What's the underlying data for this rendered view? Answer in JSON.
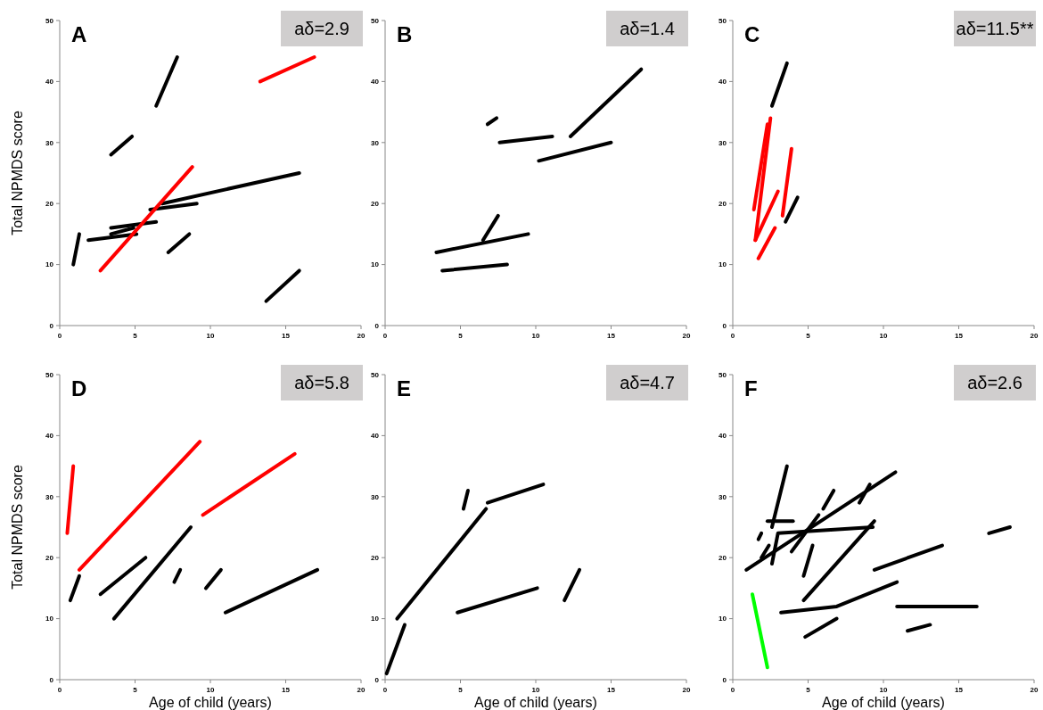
{
  "chart_data": [
    {
      "type": "line",
      "ylabel": "Total NPMDS score",
      "xlim": [
        0,
        20
      ],
      "xticks": [
        0,
        5,
        10,
        15,
        20
      ],
      "ylim": [
        0,
        50
      ],
      "yticks": [
        0,
        10,
        20,
        30,
        40,
        50
      ],
      "annotations": [
        "A",
        "aδ=2.9"
      ],
      "series": [
        {
          "color": "#000000",
          "x": [
            0.9,
            1.3
          ],
          "values": [
            10,
            15
          ]
        },
        {
          "color": "#000000",
          "x": [
            1.9,
            5.1
          ],
          "values": [
            14,
            15
          ]
        },
        {
          "color": "#000000",
          "x": [
            3.4,
            4.9
          ],
          "values": [
            15,
            16
          ]
        },
        {
          "color": "#000000",
          "x": [
            3.4,
            6.4
          ],
          "values": [
            16,
            17
          ]
        },
        {
          "color": "#000000",
          "x": [
            6.0,
            9.1
          ],
          "values": [
            19,
            20
          ]
        },
        {
          "color": "#000000",
          "x": [
            6.8,
            15.9
          ],
          "values": [
            20,
            25
          ]
        },
        {
          "color": "#000000",
          "x": [
            3.4,
            4.8
          ],
          "values": [
            28,
            31
          ]
        },
        {
          "color": "#000000",
          "x": [
            6.4,
            7.8
          ],
          "values": [
            36,
            44
          ]
        },
        {
          "color": "#000000",
          "x": [
            7.2,
            8.6
          ],
          "values": [
            12,
            15
          ]
        },
        {
          "color": "#000000",
          "x": [
            13.7,
            15.9
          ],
          "values": [
            4,
            9
          ]
        },
        {
          "color": "#ff0000",
          "x": [
            2.7,
            8.8
          ],
          "values": [
            9,
            26
          ]
        },
        {
          "color": "#ff0000",
          "x": [
            13.3,
            16.9
          ],
          "values": [
            40,
            44
          ]
        }
      ]
    },
    {
      "type": "line",
      "xlim": [
        0,
        20
      ],
      "xticks": [
        0,
        5,
        10,
        15,
        20
      ],
      "ylim": [
        0,
        50
      ],
      "yticks": [
        0,
        10,
        20,
        30,
        40,
        50
      ],
      "annotations": [
        "B",
        "aδ=1.4"
      ],
      "series": [
        {
          "color": "#000000",
          "x": [
            6.8,
            7.4
          ],
          "values": [
            33,
            34
          ]
        },
        {
          "color": "#000000",
          "x": [
            7.6,
            11.1
          ],
          "values": [
            30,
            31
          ]
        },
        {
          "color": "#000000",
          "x": [
            12.3,
            17.0
          ],
          "values": [
            31,
            42
          ]
        },
        {
          "color": "#000000",
          "x": [
            10.2,
            15.0
          ],
          "values": [
            27,
            30
          ]
        },
        {
          "color": "#000000",
          "x": [
            6.5,
            7.5
          ],
          "values": [
            14,
            18
          ]
        },
        {
          "color": "#000000",
          "x": [
            3.4,
            9.5
          ],
          "values": [
            12,
            15
          ]
        },
        {
          "color": "#000000",
          "x": [
            3.8,
            8.1
          ],
          "values": [
            9,
            10
          ]
        }
      ]
    },
    {
      "type": "line",
      "xlim": [
        0,
        20
      ],
      "xticks": [
        0,
        5,
        10,
        15,
        20
      ],
      "ylim": [
        0,
        50
      ],
      "yticks": [
        0,
        10,
        20,
        30,
        40,
        50
      ],
      "annotations": [
        "C",
        "aδ=11.5**"
      ],
      "series": [
        {
          "color": "#000000",
          "x": [
            2.6,
            3.6
          ],
          "values": [
            36,
            43
          ]
        },
        {
          "color": "#000000",
          "x": [
            3.5,
            4.3
          ],
          "values": [
            17,
            21
          ]
        },
        {
          "color": "#ff0000",
          "x": [
            1.4,
            2.3
          ],
          "values": [
            19,
            33
          ]
        },
        {
          "color": "#ff0000",
          "x": [
            1.5,
            2.5
          ],
          "values": [
            14,
            34
          ]
        },
        {
          "color": "#ff0000",
          "x": [
            1.5,
            3.0
          ],
          "values": [
            14,
            22
          ]
        },
        {
          "color": "#ff0000",
          "x": [
            1.7,
            2.8
          ],
          "values": [
            11,
            16
          ]
        },
        {
          "color": "#ff0000",
          "x": [
            3.3,
            3.9
          ],
          "values": [
            18,
            29
          ]
        }
      ]
    },
    {
      "type": "line",
      "xlabel": "Age of child (years)",
      "ylabel": "Total NPMDS score",
      "xlim": [
        0,
        20
      ],
      "xticks": [
        0,
        5,
        10,
        15,
        20
      ],
      "ylim": [
        0,
        50
      ],
      "yticks": [
        0,
        10,
        20,
        30,
        40,
        50
      ],
      "annotations": [
        "D",
        "aδ=5.8"
      ],
      "series": [
        {
          "color": "#ff0000",
          "x": [
            0.5,
            0.9
          ],
          "values": [
            24,
            35
          ]
        },
        {
          "color": "#ff0000",
          "x": [
            1.3,
            9.3
          ],
          "values": [
            18,
            39
          ]
        },
        {
          "color": "#ff0000",
          "x": [
            9.5,
            15.6
          ],
          "values": [
            27,
            37
          ]
        },
        {
          "color": "#000000",
          "x": [
            0.7,
            1.3
          ],
          "values": [
            13,
            17
          ]
        },
        {
          "color": "#000000",
          "x": [
            2.7,
            5.7
          ],
          "values": [
            14,
            20
          ]
        },
        {
          "color": "#000000",
          "x": [
            3.6,
            8.7
          ],
          "values": [
            10,
            25
          ]
        },
        {
          "color": "#000000",
          "x": [
            7.6,
            8.0
          ],
          "values": [
            16,
            18
          ]
        },
        {
          "color": "#000000",
          "x": [
            9.7,
            10.7
          ],
          "values": [
            15,
            18
          ]
        },
        {
          "color": "#000000",
          "x": [
            11.0,
            17.1
          ],
          "values": [
            11,
            18
          ]
        }
      ]
    },
    {
      "type": "line",
      "xlabel": "Age of child (years)",
      "xlim": [
        0,
        20
      ],
      "xticks": [
        0,
        5,
        10,
        15,
        20
      ],
      "ylim": [
        0,
        50
      ],
      "yticks": [
        0,
        10,
        20,
        30,
        40,
        50
      ],
      "annotations": [
        "E",
        "aδ=4.7"
      ],
      "series": [
        {
          "color": "#000000",
          "x": [
            0.1,
            1.3
          ],
          "values": [
            1,
            9
          ]
        },
        {
          "color": "#000000",
          "x": [
            0.8,
            6.7
          ],
          "values": [
            10,
            28
          ]
        },
        {
          "color": "#000000",
          "x": [
            5.2,
            5.5
          ],
          "values": [
            28,
            31
          ]
        },
        {
          "color": "#000000",
          "x": [
            6.8,
            10.5
          ],
          "values": [
            29,
            32
          ]
        },
        {
          "color": "#000000",
          "x": [
            4.8,
            10.1
          ],
          "values": [
            11,
            15
          ]
        },
        {
          "color": "#000000",
          "x": [
            11.9,
            12.9
          ],
          "values": [
            13,
            18
          ]
        }
      ]
    },
    {
      "type": "line",
      "xlabel": "Age of child (years)",
      "xlim": [
        0,
        20
      ],
      "xticks": [
        0,
        5,
        10,
        15,
        20
      ],
      "ylim": [
        0,
        50
      ],
      "yticks": [
        0,
        10,
        20,
        30,
        40,
        50
      ],
      "annotations": [
        "F",
        "aδ=2.6"
      ],
      "series": [
        {
          "color": "#00ff00",
          "x": [
            1.3,
            2.3
          ],
          "values": [
            14,
            2
          ]
        },
        {
          "color": "#000000",
          "x": [
            0.9,
            10.8
          ],
          "values": [
            18,
            34
          ]
        },
        {
          "color": "#000000",
          "x": [
            2.6,
            3.6
          ],
          "values": [
            25,
            35
          ]
        },
        {
          "color": "#000000",
          "x": [
            2.3,
            4.0
          ],
          "values": [
            26,
            26
          ]
        },
        {
          "color": "#000000",
          "x": [
            2.6,
            3.0,
            9.3
          ],
          "values": [
            19,
            24,
            25
          ]
        },
        {
          "color": "#000000",
          "x": [
            1.7,
            1.9
          ],
          "values": [
            23,
            24
          ]
        },
        {
          "color": "#000000",
          "x": [
            1.9,
            2.4
          ],
          "values": [
            20,
            22
          ]
        },
        {
          "color": "#000000",
          "x": [
            3.9,
            5.7
          ],
          "values": [
            21,
            27
          ]
        },
        {
          "color": "#000000",
          "x": [
            4.7,
            5.3
          ],
          "values": [
            17,
            22
          ]
        },
        {
          "color": "#000000",
          "x": [
            6.0,
            6.7
          ],
          "values": [
            28,
            31
          ]
        },
        {
          "color": "#000000",
          "x": [
            8.4,
            9.1
          ],
          "values": [
            29,
            32
          ]
        },
        {
          "color": "#000000",
          "x": [
            4.7,
            9.4
          ],
          "values": [
            13,
            26
          ]
        },
        {
          "color": "#000000",
          "x": [
            3.2,
            6.9,
            10.9
          ],
          "values": [
            11,
            12,
            16
          ]
        },
        {
          "color": "#000000",
          "x": [
            4.8,
            6.9
          ],
          "values": [
            7,
            10
          ]
        },
        {
          "color": "#000000",
          "x": [
            9.4,
            13.9
          ],
          "values": [
            18,
            22
          ]
        },
        {
          "color": "#000000",
          "x": [
            10.9,
            16.2
          ],
          "values": [
            12,
            12
          ]
        },
        {
          "color": "#000000",
          "x": [
            11.6,
            13.1
          ],
          "values": [
            8,
            9
          ]
        },
        {
          "color": "#000000",
          "x": [
            17.0,
            18.4
          ],
          "values": [
            24,
            25
          ]
        }
      ]
    }
  ]
}
